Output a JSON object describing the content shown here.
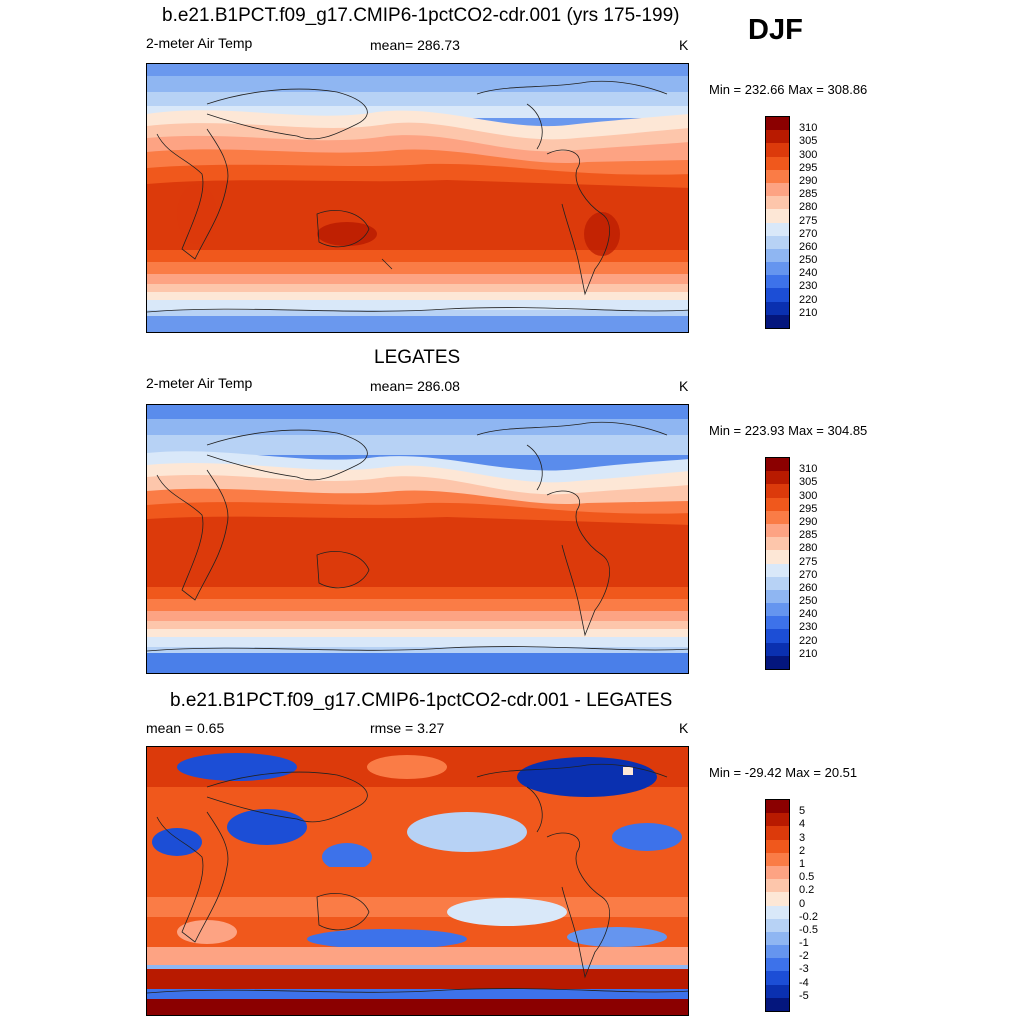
{
  "season": "DJF",
  "panels": [
    {
      "title": "b.e21.B1PCT.f09_g17.CMIP6-1pctCO2-cdr.001 (yrs 175-199)",
      "left_label": "2-meter Air Temp",
      "center_label": "mean= 286.73",
      "units": "K",
      "minmax": "Min = 232.66 Max = 308.86"
    },
    {
      "title": "LEGATES",
      "left_label": "2-meter Air Temp",
      "center_label": "mean= 286.08",
      "units": "K",
      "minmax": "Min = 223.93 Max = 304.85"
    },
    {
      "title": "b.e21.B1PCT.f09_g17.CMIP6-1pctCO2-cdr.001 - LEGATES",
      "left_label": "mean =   0.65",
      "center_label": "rmse =   3.27",
      "units": "K",
      "minmax": "Min = -29.42 Max =  20.51"
    }
  ],
  "temp_colorbar": {
    "labels": [
      "310",
      "305",
      "300",
      "295",
      "290",
      "285",
      "280",
      "275",
      "270",
      "260",
      "250",
      "240",
      "230",
      "220",
      "210"
    ],
    "colors": [
      "#8b0000",
      "#b81a00",
      "#dc3a0b",
      "#f0581c",
      "#fa7c46",
      "#fda383",
      "#fdc6ab",
      "#fde7d6",
      "#d9e8f9",
      "#b7d2f5",
      "#8fb6f2",
      "#6595ef",
      "#3d72ea",
      "#1c4ed6",
      "#0a30b0",
      "#04167d"
    ]
  },
  "diff_colorbar": {
    "labels": [
      "5",
      "4",
      "3",
      "2",
      "1",
      "0.5",
      "0.2",
      "0",
      "-0.2",
      "-0.5",
      "-1",
      "-2",
      "-3",
      "-4",
      "-5"
    ],
    "colors": [
      "#8b0000",
      "#b81a00",
      "#dc3a0b",
      "#f0581c",
      "#fa7c46",
      "#fda383",
      "#fdc6ab",
      "#fde7d6",
      "#d9e8f9",
      "#b7d2f5",
      "#8fb6f2",
      "#6595ef",
      "#3d72ea",
      "#1c4ed6",
      "#0a30b0",
      "#04167d"
    ]
  }
}
